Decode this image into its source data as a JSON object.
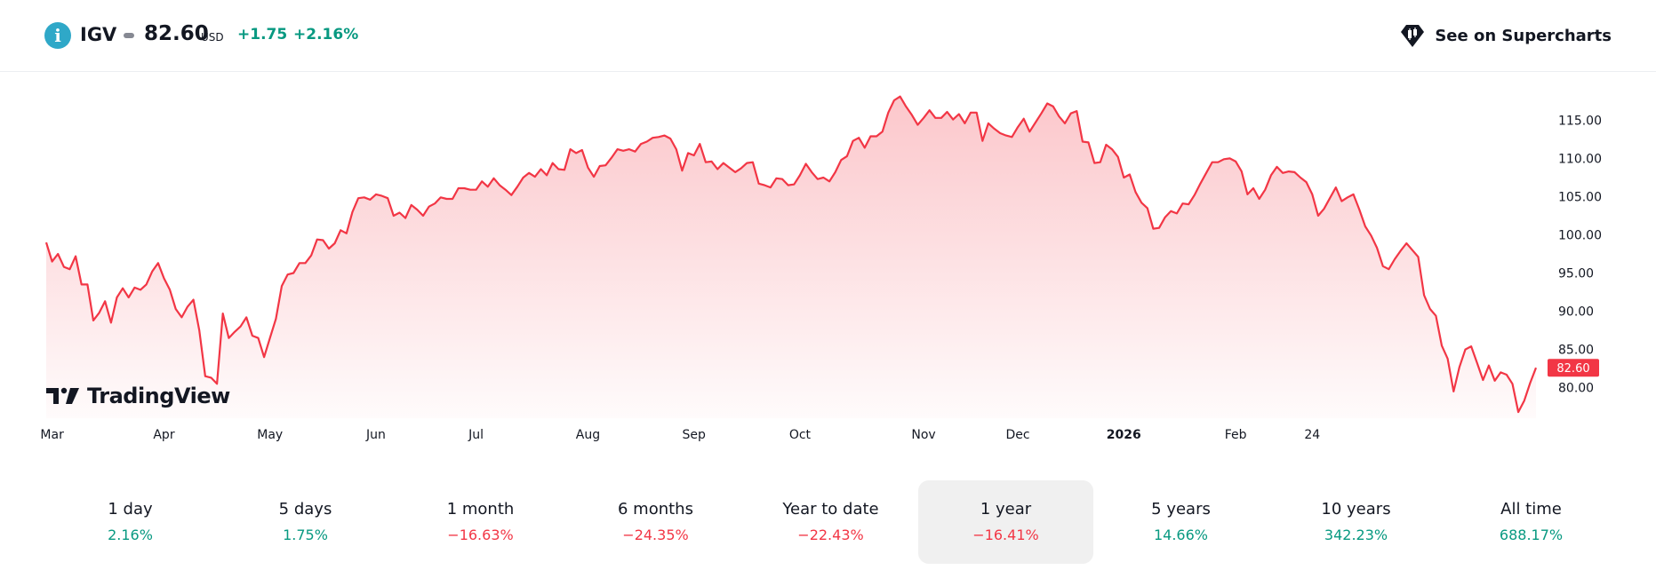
{
  "header": {
    "symbol": "IGV",
    "price": "82.60",
    "currency": "USD",
    "change_abs": "+1.75",
    "change_pct": "+2.16%",
    "change_color": "#089981",
    "supercharts_label": "See on Supercharts"
  },
  "branding": {
    "logo_text": "TradingView"
  },
  "colors": {
    "up": "#089981",
    "down": "#f23645",
    "line": "#f23645",
    "badge_bg": "#f23645",
    "active_tab_bg": "#f0f0f0"
  },
  "periods": [
    {
      "label": "1 day",
      "value": "2.16%",
      "direction": "up",
      "active": false
    },
    {
      "label": "5 days",
      "value": "1.75%",
      "direction": "up",
      "active": false
    },
    {
      "label": "1 month",
      "value": "−16.63%",
      "direction": "down",
      "active": false
    },
    {
      "label": "6 months",
      "value": "−24.35%",
      "direction": "down",
      "active": false
    },
    {
      "label": "Year to date",
      "value": "−22.43%",
      "direction": "down",
      "active": false
    },
    {
      "label": "1 year",
      "value": "−16.41%",
      "direction": "down",
      "active": true
    },
    {
      "label": "5 years",
      "value": "14.66%",
      "direction": "up",
      "active": false
    },
    {
      "label": "10 years",
      "value": "342.23%",
      "direction": "up",
      "active": false
    },
    {
      "label": "All time",
      "value": "688.17%",
      "direction": "up",
      "active": false
    }
  ],
  "chart_data": {
    "type": "area",
    "title": "",
    "xlabel": "",
    "ylabel": "",
    "ylim": [
      76,
      119
    ],
    "y_ticks": [
      "115.00",
      "110.00",
      "105.00",
      "100.00",
      "95.00",
      "90.00",
      "85.00",
      "80.00"
    ],
    "x_ticks": [
      {
        "label": "Mar",
        "index": 1,
        "bold": false
      },
      {
        "label": "Apr",
        "index": 20,
        "bold": false
      },
      {
        "label": "May",
        "index": 38,
        "bold": false
      },
      {
        "label": "Jun",
        "index": 56,
        "bold": false
      },
      {
        "label": "Jul",
        "index": 73,
        "bold": false
      },
      {
        "label": "Aug",
        "index": 92,
        "bold": false
      },
      {
        "label": "Sep",
        "index": 110,
        "bold": false
      },
      {
        "label": "Oct",
        "index": 128,
        "bold": false
      },
      {
        "label": "Nov",
        "index": 149,
        "bold": false
      },
      {
        "label": "Dec",
        "index": 165,
        "bold": false
      },
      {
        "label": "2026",
        "index": 183,
        "bold": true
      },
      {
        "label": "Feb",
        "index": 202,
        "bold": false
      },
      {
        "label": "24",
        "index": 215,
        "bold": false
      }
    ],
    "last_value_label": "82.60",
    "series": [
      {
        "values": [
          99,
          96.5,
          97.5,
          95.8,
          95.5,
          97.2,
          93.5,
          93.5,
          88.8,
          89.8,
          91.3,
          88.5,
          91.8,
          93,
          91.8,
          93.1,
          92.8,
          93.5,
          95.2,
          96.3,
          94.3,
          92.8,
          90.3,
          89.2,
          90.6,
          91.5,
          87.5,
          81.5,
          81.3,
          80.5,
          89.7,
          86.5,
          87.3,
          88,
          89.2,
          86.8,
          86.5,
          84,
          86.5,
          89,
          93.3,
          94.8,
          95,
          96.3,
          96.3,
          97.3,
          99.4,
          99.3,
          98.2,
          98.9,
          100.6,
          100.2,
          103,
          104.8,
          104.9,
          104.6,
          105.3,
          105.1,
          104.8,
          102.5,
          102.9,
          102.2,
          103.9,
          103.3,
          102.5,
          103.7,
          104.1,
          104.9,
          104.7,
          104.7,
          106.1,
          106.1,
          105.9,
          105.9,
          107,
          106.3,
          107.4,
          106.5,
          105.9,
          105.2,
          106.3,
          107.5,
          108.1,
          107.6,
          108.6,
          107.8,
          109.4,
          108.6,
          108.5,
          111.2,
          110.7,
          111.1,
          108.8,
          107.6,
          109,
          109.1,
          110.1,
          111.2,
          111,
          111.2,
          110.9,
          111.9,
          112.2,
          112.7,
          112.8,
          113,
          112.6,
          111.2,
          108.4,
          110.7,
          110.4,
          111.9,
          109.5,
          109.6,
          108.6,
          109.4,
          108.8,
          108.2,
          108.7,
          109.4,
          109.5,
          106.7,
          106.5,
          106.2,
          107.4,
          107.3,
          106.5,
          106.6,
          107.8,
          109.3,
          108.2,
          107.3,
          107.5,
          107,
          108.2,
          109.8,
          110.3,
          112.3,
          112.7,
          111.4,
          112.9,
          112.9,
          113.5,
          116,
          117.6,
          118.1,
          116.8,
          115.7,
          114.4,
          115.3,
          116.3,
          115.3,
          115.3,
          116.1,
          115.1,
          115.8,
          114.6,
          116,
          116,
          112.3,
          114.6,
          113.9,
          113.3,
          113,
          112.8,
          114.1,
          115.2,
          113.5,
          114.7,
          115.9,
          117.2,
          116.8,
          115.5,
          114.6,
          115.9,
          116.2,
          112.2,
          112.1,
          109.4,
          109.5,
          111.8,
          111.2,
          110.2,
          107.5,
          107.9,
          105.6,
          104.2,
          103.5,
          100.8,
          100.9,
          102.3,
          103.1,
          102.8,
          104.1,
          104,
          105.2,
          106.7,
          108.1,
          109.5,
          109.5,
          109.9,
          110,
          109.6,
          108.3,
          105.3,
          106.1,
          104.7,
          105.9,
          107.8,
          108.9,
          108.1,
          108.3,
          108.2,
          107.5,
          106.9,
          105.3,
          102.5,
          103.4,
          104.8,
          106.2,
          104.4,
          104.9,
          105.3,
          103.3,
          101.1,
          99.9,
          98.3,
          95.9,
          95.5,
          96.8,
          97.9,
          98.9,
          98,
          97.1,
          92.1,
          90.3,
          89.4,
          85.5,
          83.8,
          79.5,
          82.7,
          85,
          85.4,
          83.2,
          81,
          82.9,
          80.9,
          82,
          81.7,
          80.5,
          76.8,
          78.3,
          80.6,
          82.6
        ]
      }
    ]
  }
}
